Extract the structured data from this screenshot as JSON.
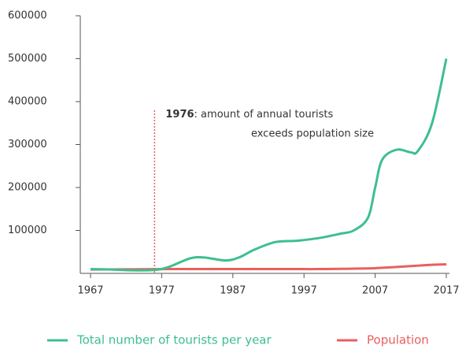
{
  "chart_data": {
    "type": "line",
    "x": [
      1967,
      1970,
      1973,
      1976,
      1978,
      1981,
      1983,
      1986,
      1988,
      1990,
      1993,
      1996,
      1999,
      2002,
      2004,
      2006,
      2007,
      2008,
      2010,
      2012,
      2013,
      2015,
      2017
    ],
    "series": [
      {
        "name": "Total number of tourists per year",
        "color": "#3dbf8f",
        "values": [
          10000,
          9000,
          7000,
          8000,
          15000,
          35000,
          37000,
          30000,
          38000,
          55000,
          73000,
          76000,
          82000,
          92000,
          100000,
          130000,
          200000,
          265000,
          288000,
          282000,
          285000,
          350000,
          500000
        ]
      },
      {
        "name": "Population",
        "color": "#e8605f",
        "values": [
          9000,
          9200,
          9500,
          9800,
          10000,
          10000,
          10000,
          10000,
          10000,
          10000,
          10000,
          10000,
          10000,
          10500,
          11000,
          11500,
          12000,
          13000,
          15000,
          17000,
          18000,
          20000,
          21000
        ]
      }
    ],
    "xlim": [
      1967,
      2017
    ],
    "xticks": [
      1967,
      1977,
      1987,
      1997,
      2007,
      2017
    ],
    "ylim": [
      0,
      600000
    ],
    "yticks": [
      100000,
      200000,
      300000,
      400000,
      500000,
      600000
    ],
    "annotation": {
      "year": 1976,
      "text": ": amount of  annual tourists",
      "text2": "exceeds population size",
      "color": "#e8605f"
    },
    "legend": "bottom"
  }
}
